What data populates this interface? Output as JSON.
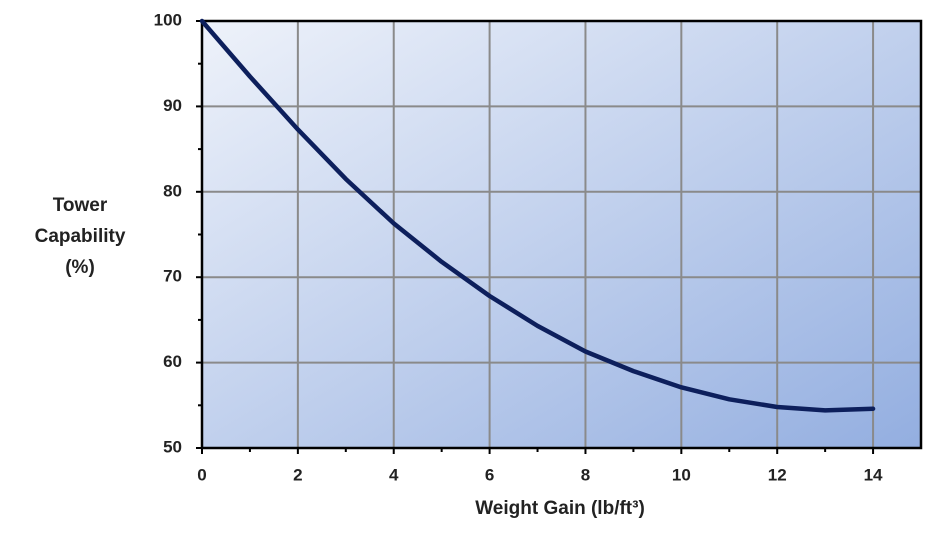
{
  "chart_data": {
    "type": "line",
    "y_label_lines": [
      "Tower",
      "Capability",
      "(%)"
    ],
    "x_label": "Weight Gain (lb/ft³)",
    "x": [
      0,
      1,
      2,
      3,
      4,
      5,
      6,
      7,
      8,
      9,
      10,
      11,
      12,
      13,
      14
    ],
    "series": [
      {
        "color": "#0d1f5c",
        "values": [
          100,
          93.5,
          87.3,
          81.5,
          76.3,
          71.8,
          67.8,
          64.3,
          61.3,
          59,
          57.1,
          55.7,
          54.8,
          54.4,
          54.6
        ]
      }
    ],
    "xlim": [
      0,
      15
    ],
    "xticks": [
      0,
      2,
      4,
      6,
      8,
      10,
      12,
      14
    ],
    "ylim": [
      50,
      100
    ],
    "yticks": [
      50,
      60,
      70,
      80,
      90,
      100
    ],
    "grid": true
  }
}
